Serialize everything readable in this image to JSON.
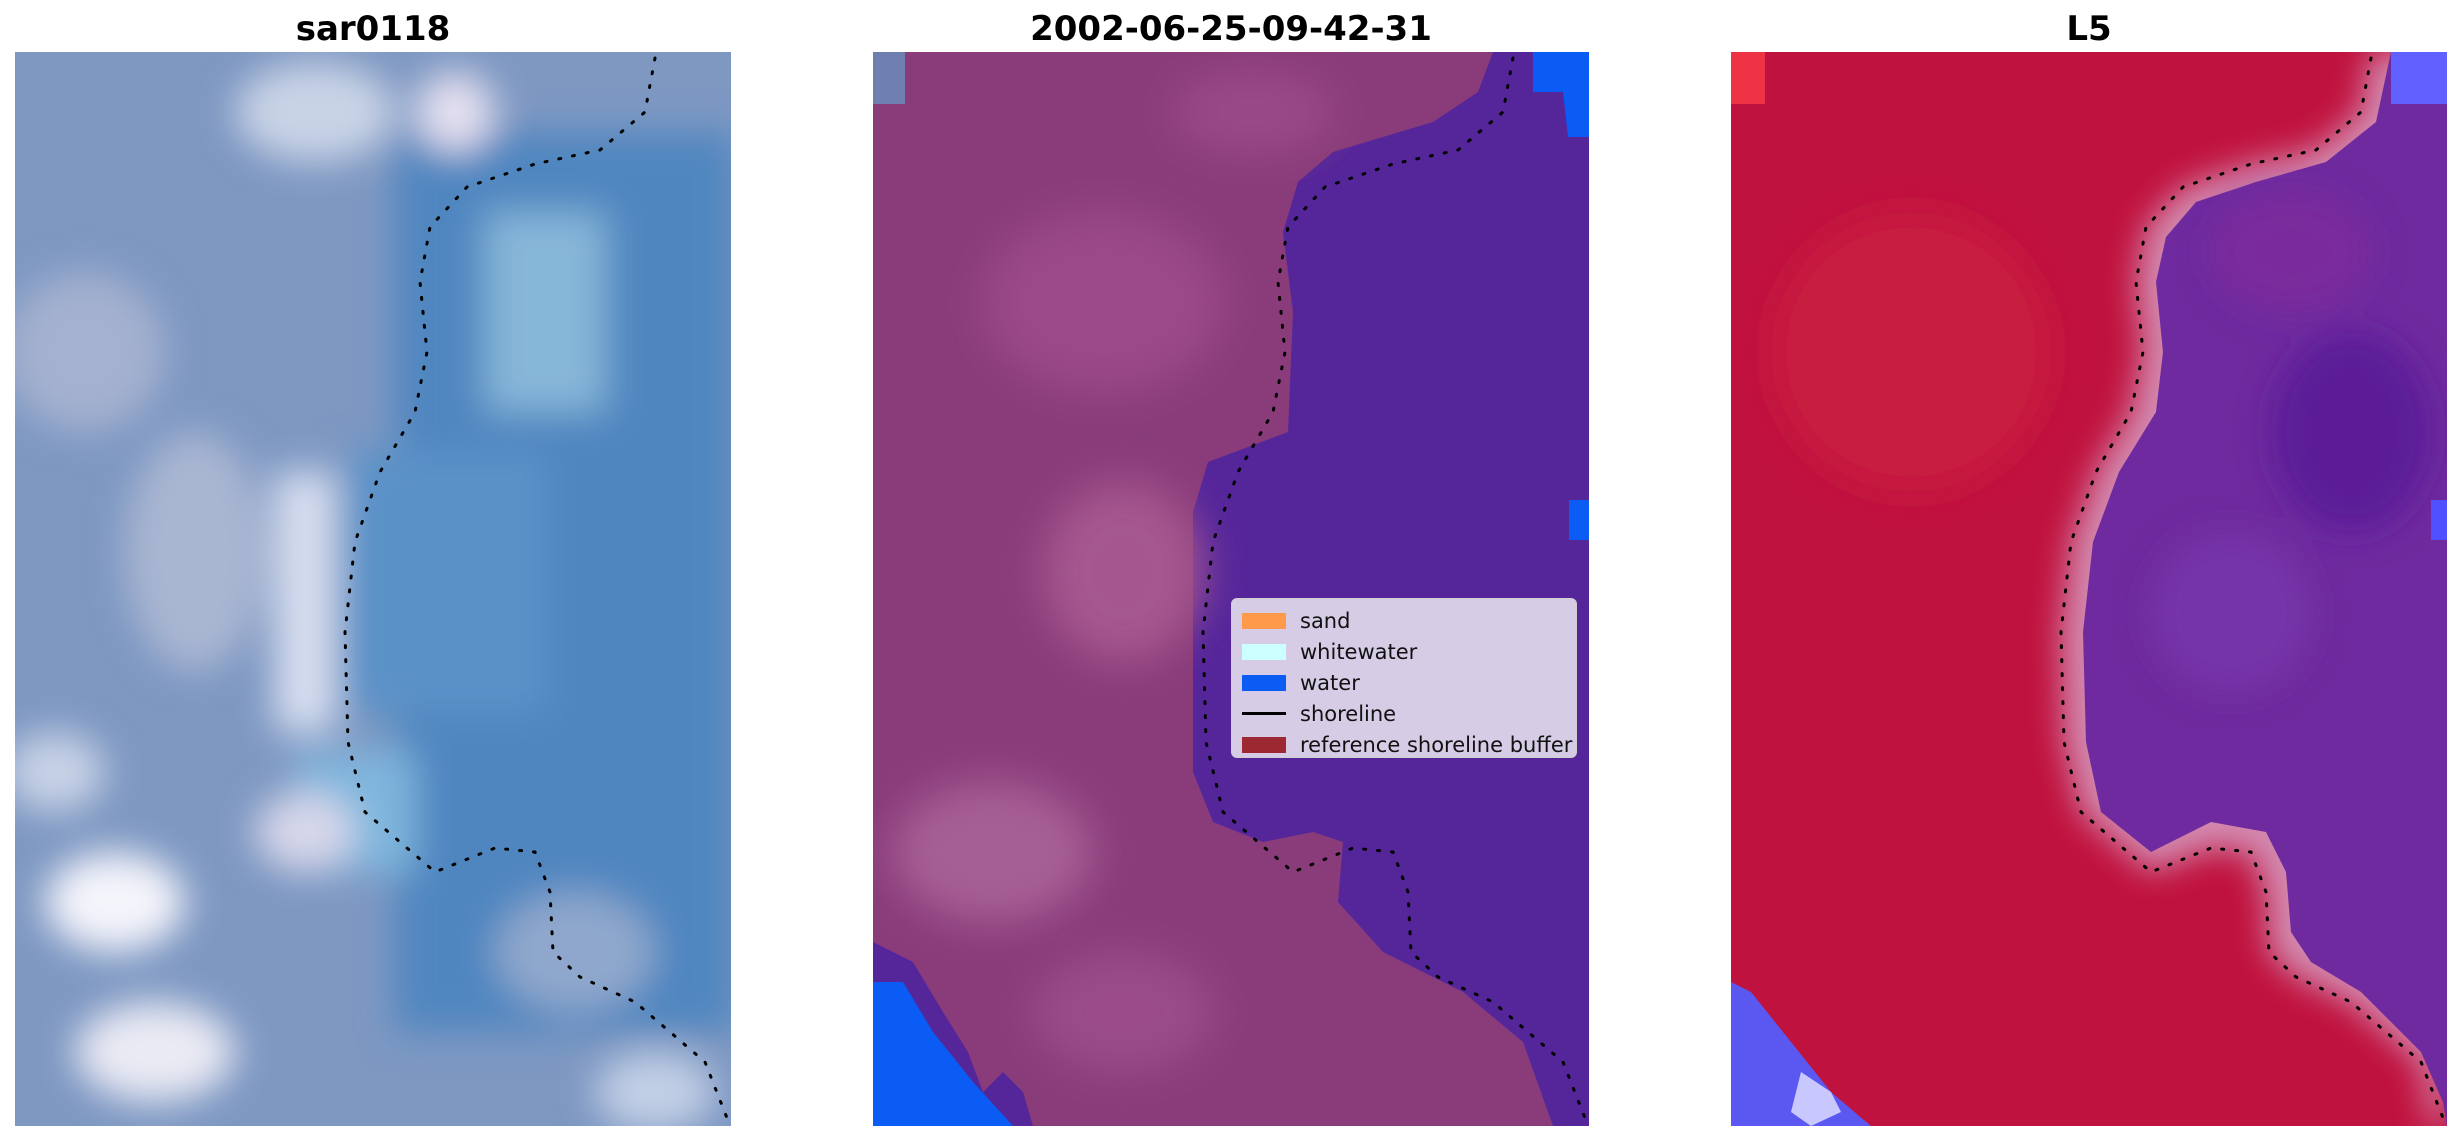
{
  "panels": [
    {
      "id": "sar",
      "title": "sar0118"
    },
    {
      "id": "classified",
      "title": "2002-06-25-09-42-31"
    },
    {
      "id": "index",
      "title": "L5"
    }
  ],
  "legend": {
    "items": [
      {
        "label": "sand",
        "kind": "patch",
        "color": "#ff9a4a"
      },
      {
        "label": "whitewater",
        "kind": "patch",
        "color": "#ccffff"
      },
      {
        "label": "water",
        "kind": "patch",
        "color": "#0a5cf5"
      },
      {
        "label": "shoreline",
        "kind": "line",
        "color": "#000000"
      },
      {
        "label": "reference shoreline buffer",
        "kind": "patch",
        "color": "#9c2832"
      }
    ]
  },
  "colors": {
    "sar_base": "#7f98c0",
    "classified_land": "#8a3c7a",
    "classified_water": "#55269a",
    "classified_blue": "#0a5cf5",
    "index_red": "#c0123e",
    "index_purple": "#6e2a9e"
  }
}
